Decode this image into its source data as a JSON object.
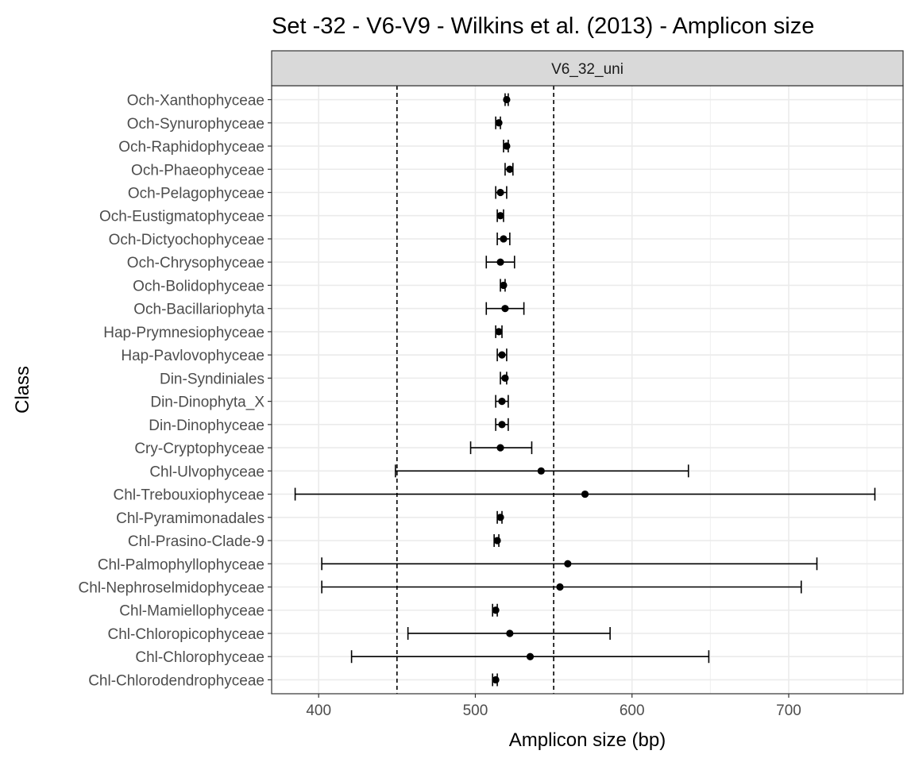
{
  "chart_data": {
    "type": "errorbar",
    "title": "Set -32 - V6-V9 - Wilkins et al. (2013) - Amplicon size",
    "facet_label": "V6_32_uni",
    "xlabel": "Amplicon size (bp)",
    "ylabel": "Class",
    "xlim": [
      370,
      773
    ],
    "x_ticks": [
      400,
      500,
      600,
      700
    ],
    "reference_lines": [
      450,
      550
    ],
    "grid": true,
    "categories": [
      "Och-Xanthophyceae",
      "Och-Synurophyceae",
      "Och-Raphidophyceae",
      "Och-Phaeophyceae",
      "Och-Pelagophyceae",
      "Och-Eustigmatophyceae",
      "Och-Dictyochophyceae",
      "Och-Chrysophyceae",
      "Och-Bolidophyceae",
      "Och-Bacillariophyta",
      "Hap-Prymnesiophyceae",
      "Hap-Pavlovophyceae",
      "Din-Syndiniales",
      "Din-Dinophyta_X",
      "Din-Dinophyceae",
      "Cry-Cryptophyceae",
      "Chl-Ulvophyceae",
      "Chl-Trebouxiophyceae",
      "Chl-Pyramimonadales",
      "Chl-Prasino-Clade-9",
      "Chl-Palmophyllophyceae",
      "Chl-Nephroselmidophyceae",
      "Chl-Mamiellophyceae",
      "Chl-Chloropicophyceae",
      "Chl-Chlorophyceae",
      "Chl-Chlorodendrophyceae"
    ],
    "mean": [
      520,
      515,
      520,
      522,
      516,
      516,
      518,
      516,
      518,
      519,
      515,
      517,
      519,
      517,
      517,
      516,
      542,
      570,
      516,
      514,
      559,
      554,
      513,
      522,
      535,
      513
    ],
    "lower": [
      519,
      513,
      518,
      519,
      513,
      514,
      514,
      507,
      516,
      507,
      513,
      514,
      516,
      513,
      513,
      497,
      449,
      385,
      514,
      512,
      402,
      402,
      511,
      457,
      421,
      511
    ],
    "upper": [
      521,
      516,
      521,
      524,
      520,
      518,
      522,
      525,
      519,
      531,
      517,
      520,
      520,
      521,
      521,
      536,
      636,
      755,
      517,
      515,
      718,
      708,
      514,
      586,
      649,
      514
    ]
  }
}
